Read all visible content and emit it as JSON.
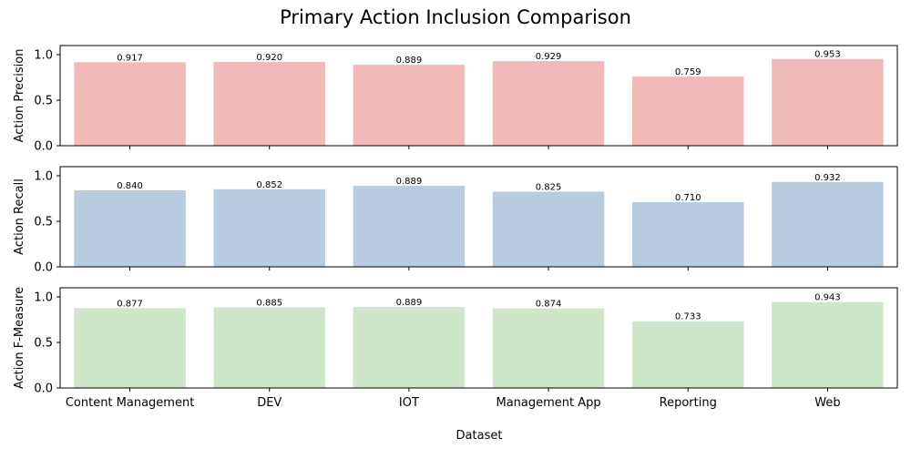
{
  "chart_data": {
    "type": "bar",
    "title": "Primary Action Inclusion Comparison",
    "xlabel": "Dataset",
    "categories": [
      "Content Management",
      "DEV",
      "IOT",
      "Management App",
      "Reporting",
      "Web"
    ],
    "subplots": [
      {
        "ylabel": "Action Precision",
        "color": "#f1b9b7",
        "ylim": [
          0,
          1.1
        ],
        "yticks": [
          "0.0",
          "0.5",
          "1.0"
        ],
        "values": [
          0.917,
          0.92,
          0.889,
          0.929,
          0.759,
          0.953
        ],
        "value_labels": [
          "0.917",
          "0.920",
          "0.889",
          "0.929",
          "0.759",
          "0.953"
        ]
      },
      {
        "ylabel": "Action Recall",
        "color": "#b9cbdf",
        "ylim": [
          0,
          1.1
        ],
        "yticks": [
          "0.0",
          "0.5",
          "1.0"
        ],
        "values": [
          0.84,
          0.852,
          0.889,
          0.825,
          0.71,
          0.932
        ],
        "value_labels": [
          "0.840",
          "0.852",
          "0.889",
          "0.825",
          "0.710",
          "0.932"
        ]
      },
      {
        "ylabel": "Action F-Measure",
        "color": "#d0e6ca",
        "ylim": [
          0,
          1.1
        ],
        "yticks": [
          "0.0",
          "0.5",
          "1.0"
        ],
        "values": [
          0.877,
          0.885,
          0.889,
          0.874,
          0.733,
          0.943
        ],
        "value_labels": [
          "0.877",
          "0.885",
          "0.889",
          "0.874",
          "0.733",
          "0.943"
        ]
      }
    ],
    "grid": false,
    "legend": "none"
  }
}
